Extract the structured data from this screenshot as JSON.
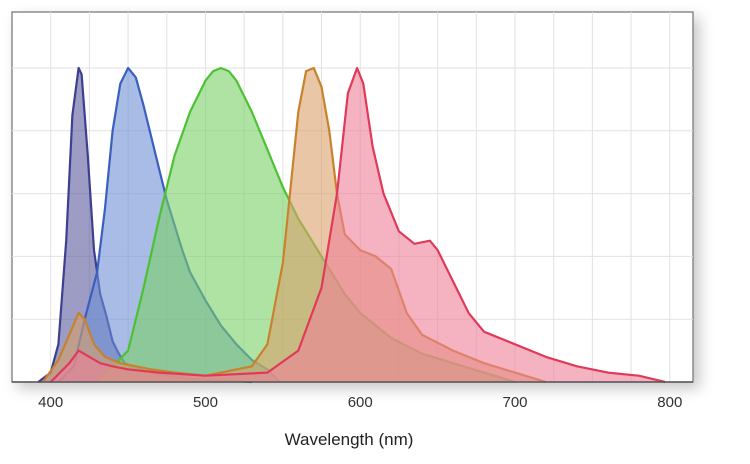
{
  "chart_data": {
    "type": "area",
    "title": "",
    "xlabel": "Wavelength (nm)",
    "ylabel": "",
    "xlim": [
      375,
      815
    ],
    "ylim": [
      0,
      1.08
    ],
    "xticks": [
      400,
      500,
      600,
      700,
      800
    ],
    "grid": true,
    "legend": "none",
    "series": [
      {
        "color": "#3d3f8f",
        "fill": "#5a5a9c",
        "x": [
          392,
          400,
          405,
          410,
          414,
          418,
          420,
          424,
          428,
          432,
          436,
          440,
          444,
          448,
          452,
          458,
          465,
          475,
          490,
          510,
          530
        ],
        "y": [
          0.0,
          0.03,
          0.12,
          0.45,
          0.85,
          1.0,
          0.98,
          0.72,
          0.42,
          0.28,
          0.21,
          0.13,
          0.09,
          0.06,
          0.05,
          0.04,
          0.03,
          0.02,
          0.01,
          0.005,
          0.0
        ]
      },
      {
        "color": "#3a5fbf",
        "fill": "#6e8fd6",
        "x": [
          405,
          415,
          422,
          430,
          435,
          440,
          445,
          450,
          455,
          460,
          465,
          470,
          475,
          480,
          485,
          490,
          500,
          510,
          520,
          530,
          540,
          548
        ],
        "y": [
          0.0,
          0.05,
          0.2,
          0.35,
          0.55,
          0.8,
          0.95,
          1.0,
          0.97,
          0.88,
          0.78,
          0.68,
          0.58,
          0.5,
          0.42,
          0.35,
          0.26,
          0.18,
          0.12,
          0.07,
          0.04,
          0.0
        ]
      },
      {
        "color": "#4cc233",
        "fill": "#7ad068",
        "x": [
          430,
          450,
          460,
          470,
          480,
          490,
          500,
          505,
          510,
          515,
          520,
          530,
          540,
          550,
          560,
          570,
          580,
          590,
          600,
          620,
          640,
          660,
          680,
          700
        ],
        "y": [
          0.0,
          0.1,
          0.3,
          0.52,
          0.72,
          0.86,
          0.96,
          0.99,
          1.0,
          0.99,
          0.96,
          0.86,
          0.74,
          0.62,
          0.52,
          0.44,
          0.36,
          0.28,
          0.22,
          0.14,
          0.09,
          0.06,
          0.03,
          0.0
        ]
      },
      {
        "color": "#c8822e",
        "fill": "#d9a06a",
        "x": [
          395,
          405,
          412,
          418,
          422,
          428,
          435,
          445,
          455,
          465,
          480,
          500,
          530,
          540,
          550,
          555,
          560,
          565,
          570,
          575,
          580,
          585,
          590,
          600,
          610,
          620,
          630,
          640,
          660,
          680,
          700,
          720
        ],
        "y": [
          0.0,
          0.07,
          0.15,
          0.22,
          0.2,
          0.12,
          0.08,
          0.06,
          0.05,
          0.04,
          0.03,
          0.02,
          0.05,
          0.12,
          0.38,
          0.62,
          0.86,
          0.99,
          1.0,
          0.94,
          0.8,
          0.6,
          0.47,
          0.42,
          0.4,
          0.36,
          0.22,
          0.15,
          0.1,
          0.06,
          0.03,
          0.0
        ]
      },
      {
        "color": "#e03a5a",
        "fill": "#ef8098",
        "x": [
          400,
          412,
          418,
          425,
          432,
          440,
          450,
          470,
          500,
          540,
          560,
          575,
          585,
          592,
          598,
          602,
          608,
          615,
          625,
          635,
          645,
          650,
          660,
          670,
          680,
          700,
          720,
          740,
          760,
          780,
          797
        ],
        "y": [
          0.0,
          0.06,
          0.1,
          0.08,
          0.06,
          0.05,
          0.04,
          0.03,
          0.02,
          0.03,
          0.1,
          0.3,
          0.6,
          0.92,
          1.0,
          0.95,
          0.75,
          0.6,
          0.48,
          0.44,
          0.45,
          0.42,
          0.32,
          0.22,
          0.16,
          0.12,
          0.08,
          0.05,
          0.03,
          0.02,
          0.0
        ]
      }
    ]
  }
}
